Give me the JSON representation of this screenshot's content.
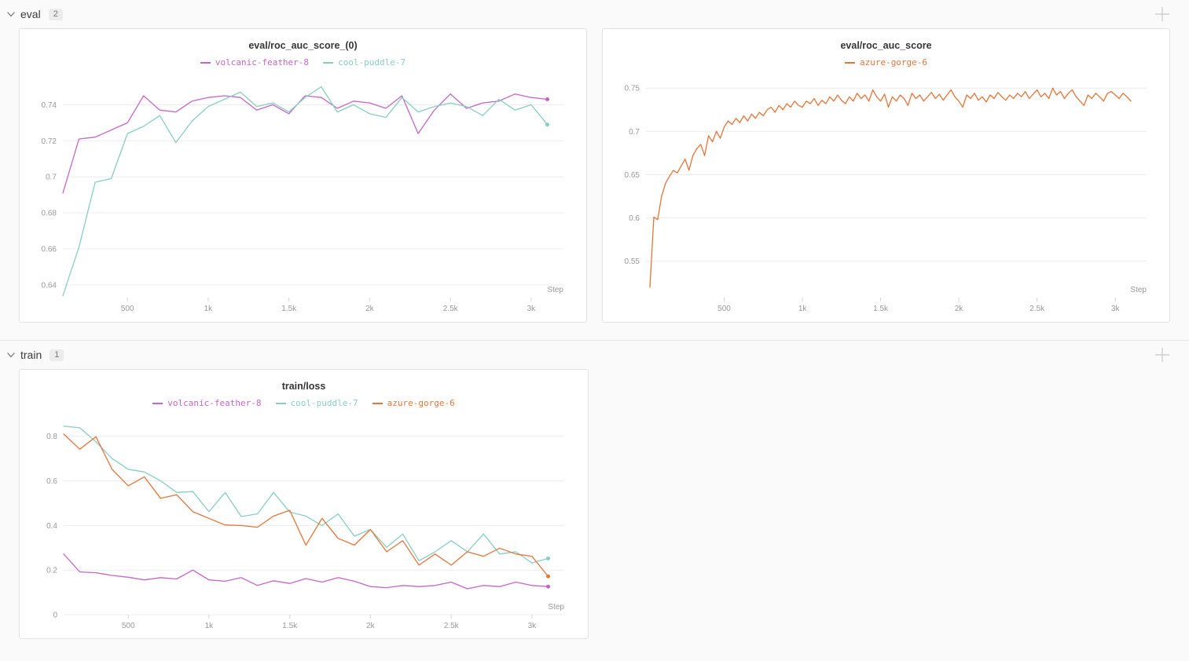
{
  "page": {
    "background": "#fafafa",
    "panel_bg": "#ffffff"
  },
  "icons": {
    "section_collapse": "chevron-down",
    "add_panel": "plus"
  },
  "sections": [
    {
      "label": "eval",
      "count": "2"
    },
    {
      "label": "train",
      "count": "1"
    }
  ],
  "chart_data": [
    {
      "type": "line",
      "title": "eval/roc_auc_score_(0)",
      "xlabel": "Step",
      "ylabel": "",
      "grid": "horizontal",
      "legend_position": "top",
      "xlim": [
        100,
        3200
      ],
      "ylim": [
        0.633,
        0.755
      ],
      "xticks": [
        500,
        1000,
        1500,
        2000,
        2500,
        3000
      ],
      "xtick_labels": [
        "500",
        "1k",
        "1.5k",
        "2k",
        "2.5k",
        "3k"
      ],
      "yticks": [
        0.64,
        0.66,
        0.68,
        0.7,
        0.72,
        0.74
      ],
      "series": [
        {
          "name": "volcanic-feather-8",
          "color": "#C565C7",
          "x_start": 100,
          "x_step": 100,
          "end_dot": true,
          "y": [
            0.691,
            0.721,
            0.722,
            0.726,
            0.73,
            0.745,
            0.737,
            0.736,
            0.742,
            0.744,
            0.745,
            0.744,
            0.737,
            0.74,
            0.735,
            0.745,
            0.744,
            0.738,
            0.742,
            0.741,
            0.738,
            0.745,
            0.724,
            0.737,
            0.746,
            0.738,
            0.741,
            0.742,
            0.746,
            0.744,
            0.743
          ]
        },
        {
          "name": "cool-puddle-7",
          "color": "#87CEBF",
          "x_start": 100,
          "x_step": 100,
          "end_dot": true,
          "y": [
            0.634,
            0.661,
            0.697,
            0.699,
            0.724,
            0.728,
            0.734,
            0.719,
            0.731,
            0.739,
            0.743,
            0.747,
            0.739,
            0.741,
            0.736,
            0.744,
            0.75,
            0.736,
            0.74,
            0.735,
            0.733,
            0.744,
            0.736,
            0.739,
            0.741,
            0.739,
            0.734,
            0.743,
            0.737,
            0.74,
            0.729
          ]
        }
      ]
    },
    {
      "type": "line",
      "title": "eval/roc_auc_score",
      "xlabel": "Step",
      "ylabel": "",
      "grid": "horizontal",
      "legend_position": "top",
      "xlim": [
        0,
        3200
      ],
      "ylim": [
        0.508,
        0.762
      ],
      "xticks": [
        500,
        1000,
        1500,
        2000,
        2500,
        3000
      ],
      "xtick_labels": [
        "500",
        "1k",
        "1.5k",
        "2k",
        "2.5k",
        "3k"
      ],
      "yticks": [
        0.55,
        0.6,
        0.65,
        0.7,
        0.75
      ],
      "series": [
        {
          "name": "azure-gorge-6",
          "color": "#E57439",
          "x_start": 25,
          "x_step": 25,
          "end_dot": false,
          "y": [
            0.52,
            0.601,
            0.598,
            0.625,
            0.64,
            0.648,
            0.655,
            0.652,
            0.66,
            0.668,
            0.655,
            0.672,
            0.68,
            0.685,
            0.672,
            0.695,
            0.688,
            0.7,
            0.692,
            0.705,
            0.712,
            0.708,
            0.715,
            0.71,
            0.718,
            0.712,
            0.72,
            0.715,
            0.722,
            0.718,
            0.725,
            0.728,
            0.722,
            0.73,
            0.725,
            0.732,
            0.728,
            0.735,
            0.73,
            0.728,
            0.735,
            0.732,
            0.738,
            0.73,
            0.736,
            0.732,
            0.74,
            0.735,
            0.742,
            0.736,
            0.732,
            0.74,
            0.735,
            0.744,
            0.738,
            0.742,
            0.735,
            0.748,
            0.74,
            0.735,
            0.743,
            0.728,
            0.74,
            0.735,
            0.742,
            0.738,
            0.73,
            0.744,
            0.738,
            0.742,
            0.735,
            0.74,
            0.745,
            0.738,
            0.743,
            0.736,
            0.742,
            0.748,
            0.74,
            0.735,
            0.728,
            0.742,
            0.738,
            0.744,
            0.736,
            0.74,
            0.734,
            0.742,
            0.738,
            0.745,
            0.74,
            0.736,
            0.742,
            0.738,
            0.744,
            0.74,
            0.746,
            0.738,
            0.743,
            0.748,
            0.74,
            0.744,
            0.738,
            0.75,
            0.742,
            0.746,
            0.738,
            0.744,
            0.748,
            0.74,
            0.735,
            0.73,
            0.742,
            0.738,
            0.744,
            0.74,
            0.735,
            0.744,
            0.746,
            0.742,
            0.738,
            0.744,
            0.74,
            0.735
          ]
        }
      ]
    },
    {
      "type": "line",
      "title": "train/loss",
      "xlabel": "Step",
      "ylabel": "",
      "grid": "horizontal",
      "legend_position": "top",
      "xlim": [
        100,
        3200
      ],
      "ylim": [
        0,
        0.88
      ],
      "xticks": [
        500,
        1000,
        1500,
        2000,
        2500,
        3000
      ],
      "xtick_labels": [
        "500",
        "1k",
        "1.5k",
        "2k",
        "2.5k",
        "3k"
      ],
      "yticks": [
        0,
        0.2,
        0.4,
        0.6,
        0.8
      ],
      "series": [
        {
          "name": "volcanic-feather-8",
          "color": "#C565C7",
          "x_start": 100,
          "x_step": 100,
          "end_dot": true,
          "y": [
            0.272,
            0.192,
            0.188,
            0.176,
            0.168,
            0.156,
            0.166,
            0.16,
            0.2,
            0.156,
            0.15,
            0.166,
            0.131,
            0.152,
            0.14,
            0.162,
            0.146,
            0.166,
            0.15,
            0.126,
            0.121,
            0.131,
            0.126,
            0.131,
            0.146,
            0.116,
            0.131,
            0.126,
            0.146,
            0.131,
            0.126
          ]
        },
        {
          "name": "cool-puddle-7",
          "color": "#87CEBF",
          "x_start": 100,
          "x_step": 100,
          "end_dot": true,
          "y": [
            0.845,
            0.838,
            0.775,
            0.7,
            0.652,
            0.64,
            0.6,
            0.548,
            0.552,
            0.462,
            0.548,
            0.44,
            0.452,
            0.548,
            0.46,
            0.442,
            0.4,
            0.452,
            0.352,
            0.382,
            0.302,
            0.362,
            0.242,
            0.282,
            0.332,
            0.282,
            0.362,
            0.272,
            0.282,
            0.232,
            0.252
          ]
        },
        {
          "name": "azure-gorge-6",
          "color": "#E57439",
          "x_start": 100,
          "x_step": 100,
          "end_dot": true,
          "y": [
            0.81,
            0.742,
            0.798,
            0.652,
            0.578,
            0.618,
            0.522,
            0.538,
            0.462,
            0.432,
            0.402,
            0.4,
            0.392,
            0.442,
            0.468,
            0.312,
            0.432,
            0.342,
            0.312,
            0.382,
            0.282,
            0.332,
            0.222,
            0.272,
            0.222,
            0.282,
            0.262,
            0.298,
            0.272,
            0.262,
            0.172
          ]
        }
      ]
    }
  ]
}
